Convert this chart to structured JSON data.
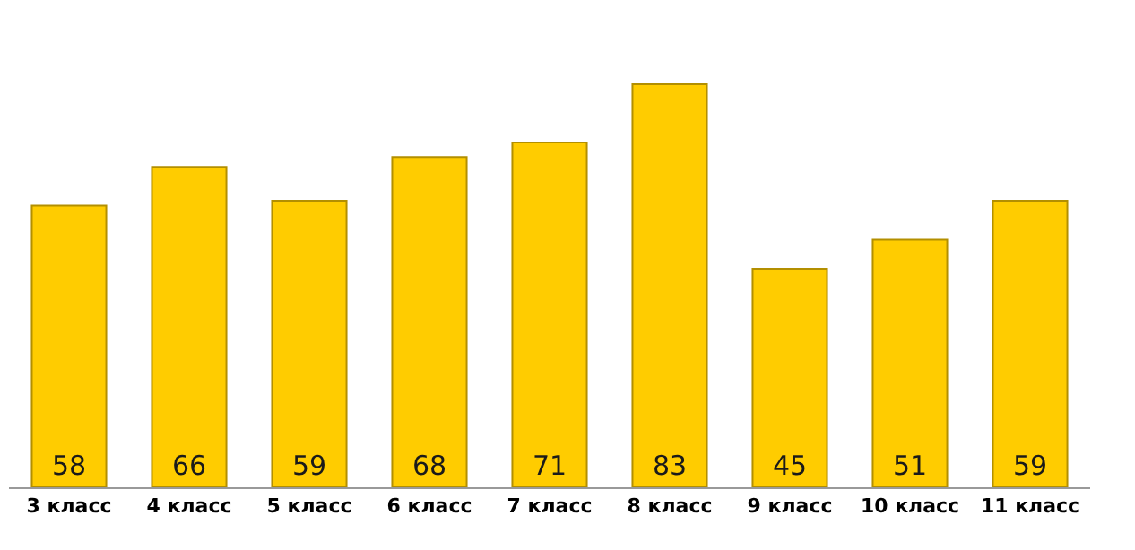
{
  "chart_data": {
    "type": "bar",
    "categories": [
      "3 класс",
      "4 класс",
      "5 класс",
      "6 класс",
      "7 класс",
      "8 класс",
      "9 класс",
      "10 класс",
      "11 класс"
    ],
    "values": [
      58,
      66,
      59,
      68,
      71,
      83,
      45,
      51,
      59
    ],
    "color": "#ffcc00",
    "data_labels": true
  }
}
